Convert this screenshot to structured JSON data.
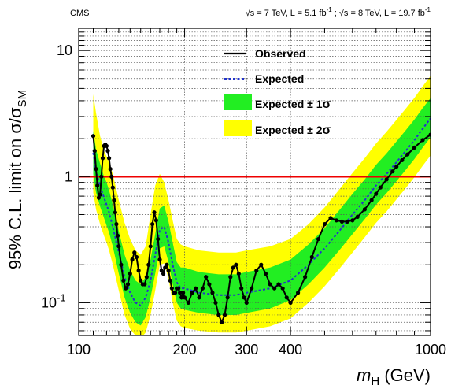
{
  "chart_data": {
    "type": "line",
    "header_left": "CMS",
    "header_right": {
      "sqrt_s1": "s = 7 TeV, L = 5.1 fb",
      "sep": " ; ",
      "sqrt_s2": "s = 8 TeV, L = 19.7 fb",
      "exp": "-1"
    },
    "ylabel": {
      "main": "95% C.L. limit on σ/σ",
      "sub": "SM"
    },
    "xlabel": {
      "sym": "m",
      "sub": "H",
      "unit": " (GeV)"
    },
    "x_scale": "log",
    "y_scale": "log",
    "xlim": [
      100,
      1000
    ],
    "ylim": [
      0.055,
      15
    ],
    "x_ticks": [
      {
        "v": 100,
        "label": "100"
      },
      {
        "v": 200,
        "label": "200"
      },
      {
        "v": 300,
        "label": "300"
      },
      {
        "v": 400,
        "label": "400"
      },
      {
        "v": 1000,
        "label": "1000"
      }
    ],
    "y_ticks": [
      {
        "v": 0.1,
        "label": "10",
        "exp": "-1"
      },
      {
        "v": 1,
        "label": "1",
        "exp": ""
      },
      {
        "v": 10,
        "label": "10",
        "exp": ""
      }
    ],
    "grid": true,
    "reference_line": {
      "y": 1,
      "color": "#ee0000"
    },
    "legend": {
      "position": "top-right",
      "entries": [
        {
          "key": "observed",
          "label": "Observed"
        },
        {
          "key": "expected",
          "label": "Expected"
        },
        {
          "key": "band1",
          "label": "Expected ± 1",
          "symbol": "σ"
        },
        {
          "key": "band2",
          "label": "Expected ± 2",
          "symbol": "σ"
        }
      ]
    },
    "colors": {
      "observed": "#000000",
      "expected": "#2233cc",
      "band1": "#22ee22",
      "band2": "#ffff00",
      "reference": "#ee0000"
    },
    "expected": {
      "x": [
        110,
        112,
        115,
        118,
        120,
        122,
        125,
        130,
        135,
        140,
        145,
        150,
        155,
        160,
        165,
        170,
        175,
        180,
        185,
        190,
        195,
        200,
        220,
        250,
        280,
        300,
        350,
        400,
        450,
        500,
        550,
        600,
        650,
        700,
        750,
        800,
        850,
        900,
        950,
        1000
      ],
      "y": [
        1.55,
        1.1,
        0.85,
        0.68,
        0.6,
        0.52,
        0.4,
        0.25,
        0.16,
        0.12,
        0.1,
        0.095,
        0.11,
        0.15,
        0.24,
        0.38,
        0.4,
        0.3,
        0.2,
        0.145,
        0.13,
        0.13,
        0.12,
        0.115,
        0.115,
        0.12,
        0.13,
        0.15,
        0.2,
        0.27,
        0.37,
        0.5,
        0.65,
        0.85,
        1.05,
        1.3,
        1.6,
        1.95,
        2.4,
        2.9
      ]
    },
    "band1": {
      "x": [
        110,
        112,
        115,
        118,
        120,
        122,
        125,
        130,
        135,
        140,
        145,
        150,
        155,
        160,
        165,
        170,
        175,
        180,
        185,
        190,
        195,
        200,
        220,
        250,
        280,
        300,
        350,
        400,
        450,
        500,
        550,
        600,
        650,
        700,
        750,
        800,
        850,
        900,
        950,
        1000
      ],
      "lo": [
        1.05,
        0.75,
        0.58,
        0.47,
        0.41,
        0.36,
        0.28,
        0.17,
        0.11,
        0.083,
        0.07,
        0.066,
        0.077,
        0.11,
        0.17,
        0.27,
        0.28,
        0.21,
        0.14,
        0.1,
        0.09,
        0.088,
        0.083,
        0.08,
        0.08,
        0.083,
        0.09,
        0.105,
        0.14,
        0.19,
        0.26,
        0.35,
        0.46,
        0.6,
        0.74,
        0.92,
        1.13,
        1.38,
        1.7,
        2.05
      ],
      "hi": [
        2.3,
        1.65,
        1.27,
        1.0,
        0.9,
        0.78,
        0.6,
        0.37,
        0.24,
        0.18,
        0.15,
        0.14,
        0.16,
        0.22,
        0.35,
        0.56,
        0.59,
        0.44,
        0.3,
        0.21,
        0.19,
        0.19,
        0.175,
        0.168,
        0.168,
        0.175,
        0.19,
        0.22,
        0.29,
        0.39,
        0.54,
        0.73,
        0.95,
        1.24,
        1.53,
        1.9,
        2.33,
        2.84,
        3.5,
        4.2
      ]
    },
    "band2": {
      "x": [
        110,
        112,
        115,
        118,
        120,
        122,
        125,
        130,
        135,
        140,
        145,
        150,
        155,
        160,
        165,
        170,
        175,
        180,
        185,
        190,
        195,
        200,
        220,
        250,
        280,
        300,
        350,
        400,
        450,
        500,
        550,
        600,
        650,
        700,
        750,
        800,
        850,
        900,
        950,
        1000
      ],
      "lo": [
        0.75,
        0.55,
        0.42,
        0.34,
        0.3,
        0.26,
        0.2,
        0.125,
        0.08,
        0.062,
        0.055,
        0.052,
        0.058,
        0.08,
        0.125,
        0.2,
        0.205,
        0.155,
        0.1,
        0.072,
        0.065,
        0.063,
        0.06,
        0.058,
        0.058,
        0.06,
        0.065,
        0.075,
        0.1,
        0.135,
        0.185,
        0.25,
        0.33,
        0.43,
        0.53,
        0.66,
        0.81,
        0.99,
        1.22,
        1.47
      ],
      "hi": [
        4.5,
        3.2,
        2.1,
        1.6,
        1.45,
        1.3,
        1.05,
        0.65,
        0.43,
        0.32,
        0.26,
        0.24,
        0.28,
        0.5,
        0.85,
        1.05,
        0.9,
        0.65,
        0.45,
        0.32,
        0.29,
        0.28,
        0.26,
        0.25,
        0.25,
        0.26,
        0.28,
        0.32,
        0.42,
        0.57,
        0.79,
        1.07,
        1.4,
        1.83,
        2.27,
        2.82,
        3.46,
        4.22,
        5.2,
        6.3
      ]
    },
    "observed": {
      "x": [
        110,
        111,
        112,
        113,
        114,
        115,
        116,
        117,
        118,
        119,
        120,
        121,
        122,
        123,
        124,
        125,
        126,
        127,
        128,
        129,
        130,
        132,
        134,
        136,
        138,
        140,
        142,
        144,
        146,
        148,
        150,
        152,
        154,
        156,
        158,
        160,
        162,
        164,
        166,
        168,
        170,
        172,
        174,
        176,
        178,
        180,
        182,
        184,
        186,
        188,
        190,
        192,
        194,
        196,
        198,
        200,
        205,
        210,
        215,
        220,
        225,
        230,
        235,
        240,
        245,
        250,
        255,
        260,
        265,
        270,
        275,
        280,
        285,
        290,
        295,
        300,
        310,
        320,
        330,
        340,
        350,
        360,
        370,
        380,
        390,
        400,
        420,
        440,
        460,
        480,
        500,
        520,
        540,
        560,
        580,
        600,
        620,
        650,
        680,
        700,
        720,
        750,
        780,
        800,
        830,
        860,
        900,
        950,
        1000
      ],
      "y": [
        2.1,
        1.6,
        1.15,
        0.85,
        0.68,
        0.72,
        1.0,
        1.4,
        1.75,
        1.8,
        1.75,
        1.6,
        1.4,
        1.15,
        1.0,
        0.82,
        0.65,
        0.52,
        0.42,
        0.34,
        0.28,
        0.2,
        0.15,
        0.13,
        0.14,
        0.17,
        0.22,
        0.25,
        0.23,
        0.18,
        0.15,
        0.14,
        0.14,
        0.16,
        0.2,
        0.28,
        0.42,
        0.52,
        0.45,
        0.32,
        0.22,
        0.18,
        0.17,
        0.19,
        0.2,
        0.18,
        0.15,
        0.13,
        0.12,
        0.12,
        0.13,
        0.13,
        0.12,
        0.11,
        0.12,
        0.11,
        0.1,
        0.12,
        0.13,
        0.11,
        0.13,
        0.16,
        0.14,
        0.12,
        0.1,
        0.08,
        0.07,
        0.08,
        0.11,
        0.16,
        0.19,
        0.2,
        0.17,
        0.13,
        0.11,
        0.1,
        0.13,
        0.18,
        0.2,
        0.17,
        0.14,
        0.13,
        0.14,
        0.13,
        0.11,
        0.1,
        0.12,
        0.16,
        0.23,
        0.32,
        0.42,
        0.47,
        0.45,
        0.44,
        0.44,
        0.45,
        0.48,
        0.55,
        0.65,
        0.73,
        0.82,
        0.95,
        1.1,
        1.2,
        1.35,
        1.5,
        1.7,
        1.95,
        2.15
      ]
    }
  }
}
